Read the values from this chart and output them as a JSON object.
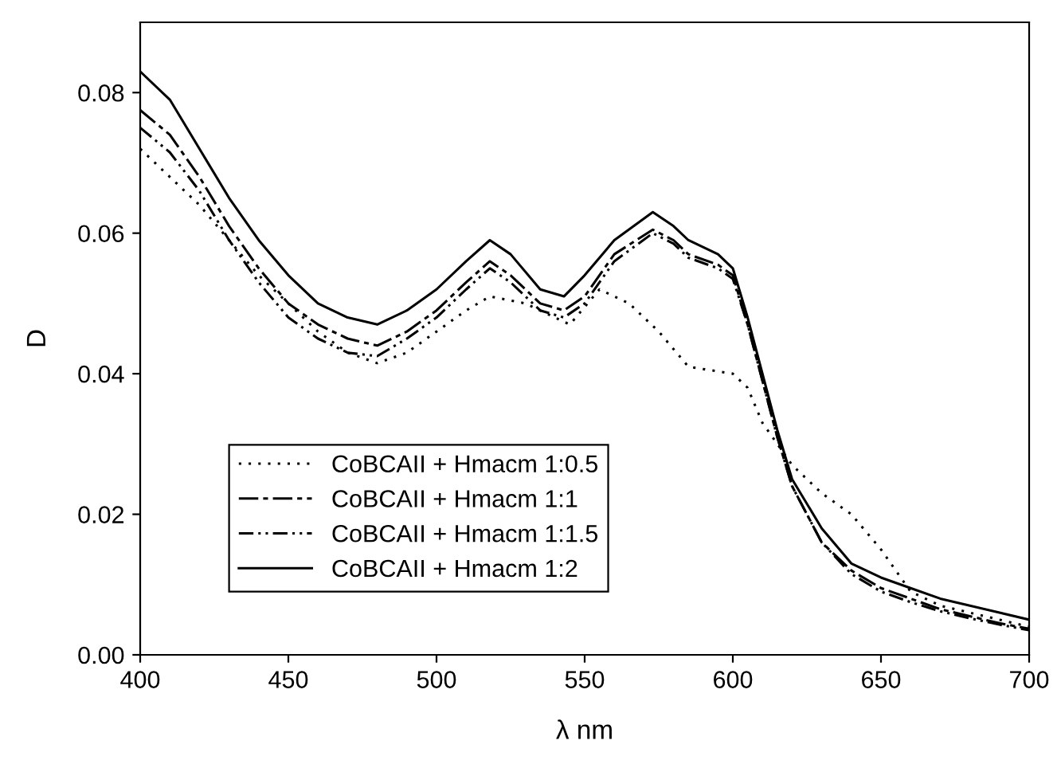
{
  "chart_data": {
    "type": "line",
    "xlabel": "λ nm",
    "ylabel": "D",
    "xlim": [
      400,
      700
    ],
    "xticks": [
      400,
      450,
      500,
      550,
      600,
      650,
      700
    ],
    "ylim": [
      0,
      0.09
    ],
    "yticks": [
      {
        "value": 0,
        "label": "0.00"
      },
      {
        "value": 0.02,
        "label": "0.02"
      },
      {
        "value": 0.04,
        "label": "0.04"
      },
      {
        "value": 0.06,
        "label": "0.06"
      },
      {
        "value": 0.08,
        "label": "0.08"
      }
    ],
    "grid": false,
    "legend": "bottom left",
    "marker": "none",
    "series": [
      {
        "name": "CoBCAII + Hmacm 1:0.5",
        "color": "#000000",
        "line_style": "dotted",
        "x": [
          400,
          410,
          420,
          430,
          440,
          450,
          460,
          470,
          480,
          490,
          500,
          510,
          518,
          530,
          545,
          555,
          565,
          575,
          585,
          600,
          605,
          610,
          620,
          630,
          640,
          650,
          660,
          670,
          680,
          690,
          700
        ],
        "values": [
          0.072,
          0.068,
          0.064,
          0.059,
          0.054,
          0.05,
          0.046,
          0.043,
          0.0415,
          0.043,
          0.046,
          0.049,
          0.051,
          0.05,
          0.047,
          0.052,
          0.05,
          0.046,
          0.041,
          0.04,
          0.038,
          0.033,
          0.027,
          0.023,
          0.02,
          0.015,
          0.009,
          0.007,
          0.006,
          0.005,
          0.004
        ]
      },
      {
        "name": "CoBCAII + Hmacm 1:1",
        "color": "#000000",
        "line_style": "dashed",
        "x": [
          400,
          410,
          420,
          430,
          440,
          450,
          460,
          470,
          480,
          490,
          500,
          510,
          518,
          525,
          535,
          543,
          550,
          560,
          573,
          580,
          585,
          595,
          600,
          605,
          610,
          615,
          620,
          630,
          640,
          650,
          660,
          670,
          680,
          690,
          700
        ],
        "values": [
          0.0775,
          0.074,
          0.068,
          0.061,
          0.055,
          0.05,
          0.047,
          0.045,
          0.044,
          0.046,
          0.049,
          0.053,
          0.056,
          0.054,
          0.05,
          0.049,
          0.051,
          0.057,
          0.0605,
          0.059,
          0.057,
          0.0555,
          0.054,
          0.047,
          0.039,
          0.031,
          0.024,
          0.016,
          0.012,
          0.0095,
          0.008,
          0.0065,
          0.0055,
          0.0045,
          0.0037
        ]
      },
      {
        "name": "CoBCAII + Hmacm 1:1.5",
        "color": "#000000",
        "line_style": "dashdot",
        "x": [
          400,
          410,
          420,
          430,
          440,
          450,
          460,
          470,
          480,
          490,
          500,
          510,
          518,
          525,
          535,
          543,
          550,
          560,
          573,
          580,
          585,
          595,
          600,
          605,
          610,
          615,
          620,
          630,
          640,
          650,
          660,
          670,
          680,
          690,
          700
        ],
        "values": [
          0.075,
          0.0715,
          0.066,
          0.059,
          0.053,
          0.048,
          0.045,
          0.043,
          0.0425,
          0.045,
          0.048,
          0.052,
          0.055,
          0.053,
          0.049,
          0.048,
          0.05,
          0.056,
          0.06,
          0.0585,
          0.0565,
          0.055,
          0.0535,
          0.047,
          0.039,
          0.031,
          0.024,
          0.016,
          0.0115,
          0.009,
          0.0075,
          0.0062,
          0.0052,
          0.0043,
          0.0035
        ]
      },
      {
        "name": "CoBCAII + Hmacm 1:2",
        "color": "#000000",
        "line_style": "solid",
        "x": [
          400,
          410,
          420,
          430,
          440,
          450,
          460,
          470,
          480,
          490,
          500,
          510,
          518,
          525,
          535,
          543,
          550,
          560,
          573,
          580,
          585,
          595,
          600,
          605,
          610,
          615,
          620,
          630,
          640,
          650,
          660,
          670,
          680,
          690,
          700
        ],
        "values": [
          0.083,
          0.079,
          0.072,
          0.065,
          0.059,
          0.054,
          0.05,
          0.048,
          0.047,
          0.049,
          0.052,
          0.056,
          0.059,
          0.057,
          0.052,
          0.051,
          0.054,
          0.059,
          0.063,
          0.061,
          0.059,
          0.057,
          0.055,
          0.048,
          0.04,
          0.032,
          0.025,
          0.018,
          0.013,
          0.011,
          0.0095,
          0.008,
          0.007,
          0.006,
          0.005
        ]
      }
    ]
  }
}
